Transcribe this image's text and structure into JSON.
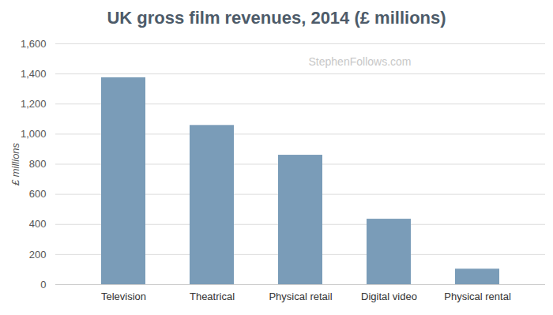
{
  "chart_data": {
    "type": "bar",
    "title": "UK gross film revenues, 2014 (£ millions)",
    "y_label": "£ millions",
    "annotation": "StephenFollows.com",
    "categories": [
      "Television",
      "Theatrical",
      "Physical retail",
      "Digital video",
      "Physical rental"
    ],
    "values": [
      1375,
      1058,
      860,
      435,
      103
    ],
    "color": "#7a9cb8",
    "ylim": [
      0,
      1600
    ],
    "yticks": [
      0,
      200,
      400,
      600,
      800,
      {
        "value": 1000,
        "label": "1,000"
      },
      {
        "value": 1200,
        "label": "1,200"
      },
      {
        "value": 1400,
        "label": "1,400"
      },
      {
        "value": 1600,
        "label": "1,600"
      }
    ],
    "grid": true
  }
}
